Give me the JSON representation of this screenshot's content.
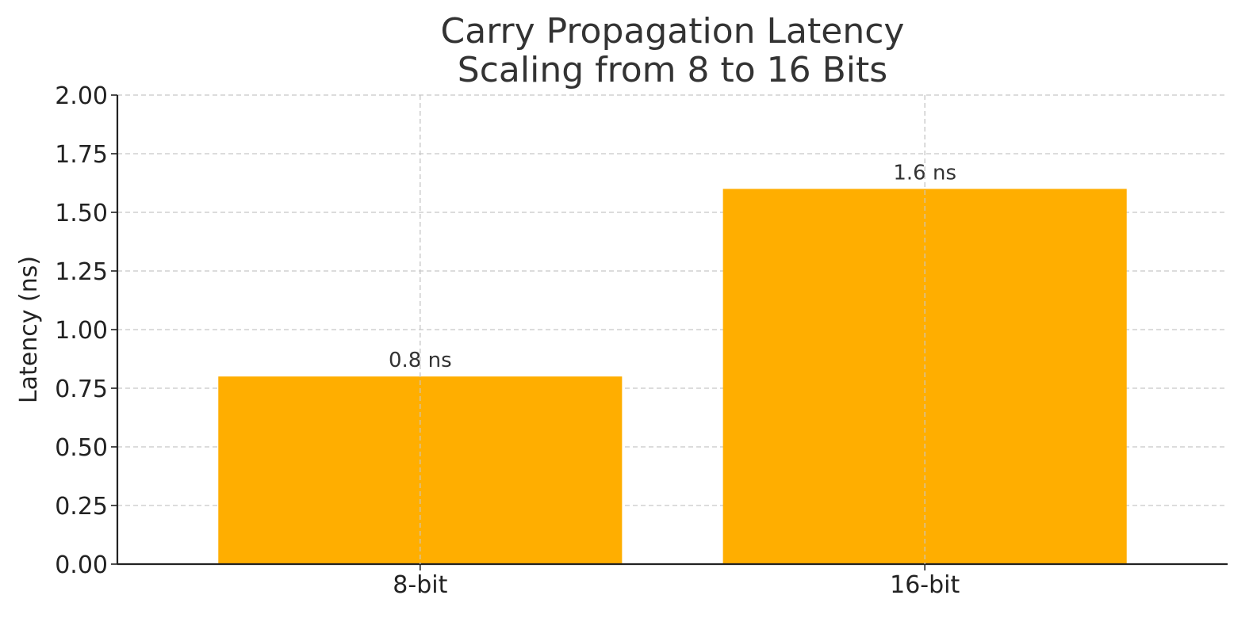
{
  "chart_data": {
    "type": "bar",
    "title_lines": [
      "Carry Propagation Latency",
      "Scaling from 8 to 16 Bits"
    ],
    "xlabel": "",
    "ylabel": "Latency (ns)",
    "categories": [
      "8-bit",
      "16-bit"
    ],
    "values": [
      0.8,
      1.6
    ],
    "data_labels": [
      "0.8 ns",
      "1.6 ns"
    ],
    "ylim": [
      0,
      2.0
    ],
    "yticks": [
      0.0,
      0.25,
      0.5,
      0.75,
      1.0,
      1.25,
      1.5,
      1.75,
      2.0
    ],
    "ytick_labels": [
      "0.00",
      "0.25",
      "0.50",
      "0.75",
      "1.00",
      "1.25",
      "1.50",
      "1.75",
      "2.00"
    ],
    "grid": true,
    "bar_color": "#FFAE00"
  }
}
